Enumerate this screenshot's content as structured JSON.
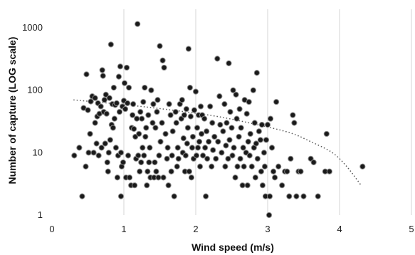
{
  "chart_data": {
    "type": "scatter",
    "xlabel": "Wind speed (m/s)",
    "ylabel": "Number of capture (LOG scale)",
    "xlim": [
      0,
      5
    ],
    "ylim": [
      1,
      2000
    ],
    "yscale": "log",
    "x_ticks": [
      "0",
      "1",
      "2",
      "3",
      "4",
      "5"
    ],
    "y_ticks": [
      "1",
      "10",
      "100",
      "1000"
    ],
    "grid": "vertical",
    "legend": "none",
    "colors": {
      "point": "#1a1a1a",
      "point_edge": "#8a8a8a",
      "trend": "#555555",
      "grid": "#d4d4d4"
    },
    "series": [
      {
        "points": [
          [
            0.31,
            9
          ],
          [
            0.38,
            12
          ],
          [
            0.42,
            2
          ],
          [
            0.44,
            52
          ],
          [
            0.47,
            6
          ],
          [
            0.48,
            180
          ],
          [
            0.5,
            48
          ],
          [
            0.51,
            10
          ],
          [
            0.53,
            20
          ],
          [
            0.54,
            66
          ],
          [
            0.56,
            80
          ],
          [
            0.58,
            10
          ],
          [
            0.6,
            75
          ],
          [
            0.6,
            30
          ],
          [
            0.62,
            14
          ],
          [
            0.63,
            38
          ],
          [
            0.64,
            62
          ],
          [
            0.65,
            9
          ],
          [
            0.66,
            42
          ],
          [
            0.68,
            55
          ],
          [
            0.69,
            12
          ],
          [
            0.7,
            210
          ],
          [
            0.71,
            170
          ],
          [
            0.72,
            45
          ],
          [
            0.73,
            70
          ],
          [
            0.74,
            14
          ],
          [
            0.75,
            85
          ],
          [
            0.76,
            42
          ],
          [
            0.77,
            7
          ],
          [
            0.78,
            5
          ],
          [
            0.79,
            10
          ],
          [
            0.8,
            75
          ],
          [
            0.81,
            16
          ],
          [
            0.82,
            540
          ],
          [
            0.83,
            28
          ],
          [
            0.84,
            60
          ],
          [
            0.85,
            25
          ],
          [
            0.86,
            110
          ],
          [
            0.87,
            35
          ],
          [
            0.88,
            58
          ],
          [
            0.89,
            12
          ],
          [
            0.9,
            62
          ],
          [
            0.91,
            4
          ],
          [
            0.92,
            9
          ],
          [
            0.93,
            165
          ],
          [
            0.94,
            45
          ],
          [
            0.95,
            240
          ],
          [
            0.96,
            10
          ],
          [
            0.96,
            2
          ],
          [
            0.97,
            6
          ],
          [
            0.98,
            55
          ],
          [
            0.99,
            7
          ],
          [
            1.0,
            68
          ],
          [
            1.01,
            130
          ],
          [
            1.02,
            50
          ],
          [
            1.03,
            4
          ],
          [
            1.04,
            230
          ],
          [
            1.05,
            62
          ],
          [
            1.06,
            9
          ],
          [
            1.07,
            110
          ],
          [
            1.08,
            4
          ],
          [
            1.1,
            3
          ],
          [
            1.11,
            25
          ],
          [
            1.12,
            40
          ],
          [
            1.13,
            60
          ],
          [
            1.14,
            24
          ],
          [
            1.15,
            3
          ],
          [
            1.16,
            18
          ],
          [
            1.17,
            8
          ],
          [
            1.18,
            35
          ],
          [
            1.19,
            1150
          ],
          [
            1.2,
            9
          ],
          [
            1.21,
            20
          ],
          [
            1.22,
            5
          ],
          [
            1.23,
            45
          ],
          [
            1.24,
            7
          ],
          [
            1.25,
            35
          ],
          [
            1.26,
            12
          ],
          [
            1.27,
            65
          ],
          [
            1.28,
            9
          ],
          [
            1.29,
            110
          ],
          [
            1.3,
            18
          ],
          [
            1.31,
            25
          ],
          [
            1.32,
            3
          ],
          [
            1.33,
            5
          ],
          [
            1.34,
            40
          ],
          [
            1.35,
            7
          ],
          [
            1.36,
            12
          ],
          [
            1.37,
            4
          ],
          [
            1.38,
            100
          ],
          [
            1.4,
            30
          ],
          [
            1.41,
            60
          ],
          [
            1.42,
            4
          ],
          [
            1.43,
            7
          ],
          [
            1.44,
            25
          ],
          [
            1.45,
            5
          ],
          [
            1.46,
            45
          ],
          [
            1.47,
            70
          ],
          [
            1.48,
            4
          ],
          [
            1.49,
            9
          ],
          [
            1.5,
            510
          ],
          [
            1.51,
            15
          ],
          [
            1.53,
            30
          ],
          [
            1.54,
            300
          ],
          [
            1.55,
            4
          ],
          [
            1.56,
            230
          ],
          [
            1.58,
            20
          ],
          [
            1.6,
            8
          ],
          [
            1.61,
            12
          ],
          [
            1.62,
            3
          ],
          [
            1.63,
            60
          ],
          [
            1.65,
            40
          ],
          [
            1.66,
            5
          ],
          [
            1.67,
            9
          ],
          [
            1.68,
            22
          ],
          [
            1.7,
            2
          ],
          [
            1.72,
            45
          ],
          [
            1.73,
            30
          ],
          [
            1.74,
            6
          ],
          [
            1.75,
            12
          ],
          [
            1.76,
            8
          ],
          [
            1.78,
            60
          ],
          [
            1.8,
            35
          ],
          [
            1.81,
            70
          ],
          [
            1.82,
            10
          ],
          [
            1.83,
            17
          ],
          [
            1.84,
            40
          ],
          [
            1.85,
            5
          ],
          [
            1.86,
            9
          ],
          [
            1.87,
            50
          ],
          [
            1.88,
            14
          ],
          [
            1.89,
            25
          ],
          [
            1.9,
            460
          ],
          [
            1.91,
            5
          ],
          [
            1.92,
            110
          ],
          [
            1.93,
            38
          ],
          [
            1.94,
            4
          ],
          [
            1.95,
            12
          ],
          [
            1.96,
            18
          ],
          [
            1.97,
            8
          ],
          [
            1.98,
            48
          ],
          [
            2.0,
            95
          ],
          [
            2.01,
            9
          ],
          [
            2.02,
            25
          ],
          [
            2.03,
            12
          ],
          [
            2.04,
            40
          ],
          [
            2.05,
            15
          ],
          [
            2.06,
            6
          ],
          [
            2.07,
            55
          ],
          [
            2.08,
            20
          ],
          [
            2.09,
            40
          ],
          [
            2.1,
            9
          ],
          [
            2.12,
            35
          ],
          [
            2.13,
            12
          ],
          [
            2.14,
            2
          ],
          [
            2.15,
            22
          ],
          [
            2.16,
            8
          ],
          [
            2.18,
            15
          ],
          [
            2.2,
            55
          ],
          [
            2.22,
            6
          ],
          [
            2.23,
            30
          ],
          [
            2.24,
            11
          ],
          [
            2.26,
            18
          ],
          [
            2.28,
            8
          ],
          [
            2.3,
            320
          ],
          [
            2.31,
            15
          ],
          [
            2.33,
            80
          ],
          [
            2.34,
            28
          ],
          [
            2.36,
            10
          ],
          [
            2.38,
            22
          ],
          [
            2.4,
            60
          ],
          [
            2.41,
            6
          ],
          [
            2.42,
            13
          ],
          [
            2.43,
            30
          ],
          [
            2.45,
            8
          ],
          [
            2.46,
            270
          ],
          [
            2.47,
            16
          ],
          [
            2.48,
            45
          ],
          [
            2.5,
            25
          ],
          [
            2.51,
            9
          ],
          [
            2.52,
            100
          ],
          [
            2.53,
            12
          ],
          [
            2.55,
            4
          ],
          [
            2.56,
            85
          ],
          [
            2.57,
            35
          ],
          [
            2.58,
            6
          ],
          [
            2.6,
            18
          ],
          [
            2.61,
            50
          ],
          [
            2.62,
            8
          ],
          [
            2.63,
            25
          ],
          [
            2.65,
            3
          ],
          [
            2.66,
            12
          ],
          [
            2.67,
            6
          ],
          [
            2.68,
            70
          ],
          [
            2.7,
            10
          ],
          [
            2.71,
            42
          ],
          [
            2.72,
            3
          ],
          [
            2.73,
            15
          ],
          [
            2.74,
            65
          ],
          [
            2.75,
            9
          ],
          [
            2.76,
            20
          ],
          [
            2.78,
            6
          ],
          [
            2.8,
            100
          ],
          [
            2.81,
            12
          ],
          [
            2.82,
            30
          ],
          [
            2.83,
            4
          ],
          [
            2.84,
            14
          ],
          [
            2.85,
            190
          ],
          [
            2.86,
            8
          ],
          [
            2.88,
            22
          ],
          [
            2.9,
            16
          ],
          [
            2.91,
            5
          ],
          [
            2.92,
            28
          ],
          [
            2.93,
            3
          ],
          [
            2.95,
            10
          ],
          [
            2.96,
            6
          ],
          [
            2.97,
            2
          ],
          [
            2.98,
            16
          ],
          [
            3.0,
            28
          ],
          [
            3.02,
            1
          ],
          [
            3.03,
            2
          ],
          [
            3.04,
            35
          ],
          [
            3.06,
            12
          ],
          [
            3.08,
            5
          ],
          [
            3.1,
            4
          ],
          [
            3.12,
            65
          ],
          [
            3.15,
            6
          ],
          [
            3.2,
            3
          ],
          [
            3.24,
            5
          ],
          [
            3.27,
            5
          ],
          [
            3.3,
            2
          ],
          [
            3.32,
            8
          ],
          [
            3.35,
            40
          ],
          [
            3.37,
            30
          ],
          [
            3.4,
            2
          ],
          [
            3.43,
            5
          ],
          [
            3.46,
            5
          ],
          [
            3.5,
            2
          ],
          [
            3.6,
            8
          ],
          [
            3.64,
            7
          ],
          [
            3.7,
            2
          ],
          [
            3.8,
            5
          ],
          [
            3.82,
            20
          ],
          [
            3.86,
            5
          ],
          [
            4.32,
            6
          ]
        ]
      }
    ],
    "trendline": {
      "style": "dotted",
      "points": [
        [
          0.3,
          70
        ],
        [
          0.8,
          62
        ],
        [
          1.3,
          54
        ],
        [
          1.8,
          46
        ],
        [
          2.3,
          38
        ],
        [
          2.8,
          29
        ],
        [
          3.3,
          21
        ],
        [
          3.6,
          15
        ],
        [
          3.9,
          10
        ],
        [
          4.1,
          6
        ],
        [
          4.3,
          3
        ]
      ]
    }
  }
}
